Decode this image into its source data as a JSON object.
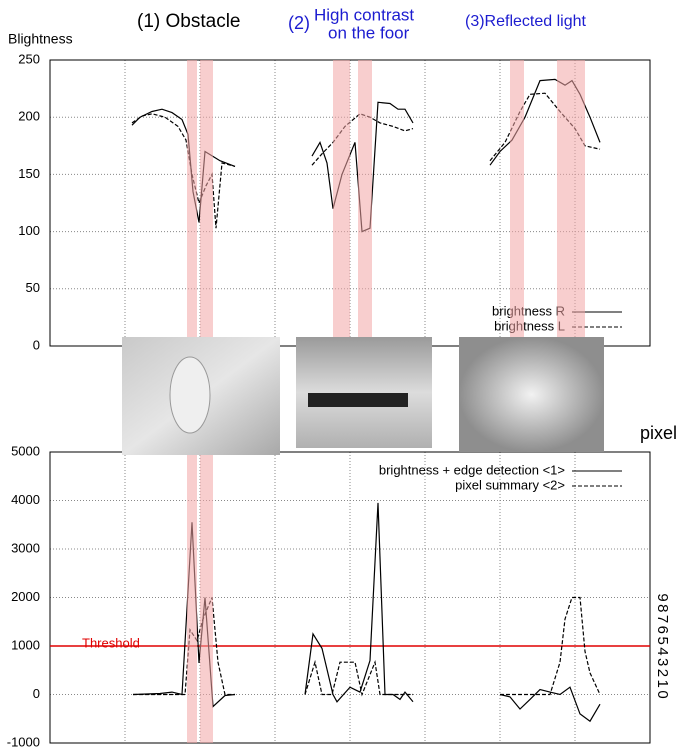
{
  "chart_data": [
    {
      "type": "line",
      "y_label": "Blightness",
      "annotations": [
        {
          "lines": [
            "(1) Obstacle"
          ],
          "color": "#000000"
        },
        {
          "prefix": "(2)",
          "lines": [
            "High contrast",
            "on the foor"
          ],
          "color": "#1c1cd0"
        },
        {
          "lines": [
            "(3)Reflected light"
          ],
          "color": "#1c1cd0"
        }
      ],
      "xlim": [
        0,
        600
      ],
      "xticks": [
        75,
        150,
        225,
        300,
        375,
        450,
        525
      ],
      "ylim": [
        0,
        250
      ],
      "yticks": [
        0,
        50,
        100,
        150,
        200,
        250
      ],
      "grid": true,
      "series": [
        {
          "name": "brightness R",
          "color": "#000000",
          "line_style": "solid",
          "x": [
            82,
            90,
            102,
            112,
            122,
            132,
            138,
            143,
            149,
            155,
            170,
            185,
            null,
            262,
            270,
            277,
            283,
            292,
            305,
            312,
            320,
            328,
            340,
            348,
            355,
            363,
            null,
            440,
            450,
            462,
            475,
            490,
            505,
            515,
            522,
            530,
            540,
            550
          ],
          "values": [
            193,
            200,
            205,
            207,
            204,
            198,
            185,
            135,
            108,
            170,
            162,
            157,
            null,
            166,
            178,
            160,
            120,
            150,
            178,
            100,
            103,
            213,
            212,
            207,
            207,
            195,
            null,
            158,
            170,
            180,
            200,
            232,
            233,
            228,
            232,
            220,
            200,
            178
          ]
        },
        {
          "name": "brightness L",
          "color": "#000000",
          "line_style": "dashed",
          "x": [
            82,
            92,
            102,
            115,
            128,
            136,
            142,
            149,
            156,
            162,
            166,
            172,
            185,
            null,
            262,
            272,
            283,
            295,
            310,
            320,
            330,
            343,
            355,
            363,
            null,
            440,
            455,
            470,
            480,
            495,
            510,
            525,
            535,
            550
          ],
          "values": [
            195,
            201,
            203,
            200,
            192,
            180,
            150,
            125,
            140,
            150,
            103,
            160,
            157,
            null,
            158,
            168,
            178,
            192,
            203,
            200,
            195,
            192,
            188,
            190,
            null,
            162,
            178,
            205,
            220,
            221,
            205,
            190,
            175,
            172
          ]
        }
      ]
    },
    {
      "type": "line",
      "y2_label": "pixel",
      "threshold": {
        "label": "Threshold",
        "value": 1000,
        "color": "#e00000"
      },
      "xlim": [
        0,
        600
      ],
      "xticks": [
        75,
        150,
        225,
        300,
        375,
        450,
        525
      ],
      "ylim": [
        -1000,
        5000
      ],
      "yticks": [
        -1000,
        0,
        1000,
        2000,
        3000,
        4000,
        5000
      ],
      "y2lim": [
        -4.5,
        22.5
      ],
      "y2ticks": [
        0,
        1,
        2,
        3,
        4,
        5,
        6,
        7,
        8,
        9
      ],
      "grid": true,
      "series": [
        {
          "name": "brightness + edge detection <1>",
          "color": "#000000",
          "line_style": "solid",
          "x": [
            83,
            110,
            122,
            132,
            142,
            149,
            155,
            163,
            175,
            185,
            null,
            255,
            263,
            272,
            283,
            287,
            300,
            310,
            320,
            328,
            335,
            343,
            350,
            355,
            363,
            null,
            450,
            460,
            470,
            480,
            490,
            500,
            510,
            520,
            530,
            540,
            550
          ],
          "values": [
            0,
            20,
            50,
            0,
            3550,
            650,
            2000,
            -250,
            -20,
            0,
            null,
            0,
            1250,
            950,
            0,
            -150,
            150,
            50,
            700,
            3950,
            0,
            0,
            -100,
            50,
            -150,
            null,
            0,
            -50,
            -300,
            -100,
            100,
            50,
            0,
            150,
            -400,
            -550,
            -200
          ]
        },
        {
          "name": "pixel summary <2>",
          "color": "#000000",
          "line_style": "dashed",
          "axis": "y2",
          "x": [
            83,
            135,
            140,
            147,
            153,
            162,
            168,
            175,
            185,
            null,
            255,
            265,
            272,
            282,
            290,
            305,
            312,
            325,
            330,
            345,
            355,
            363,
            null,
            450,
            470,
            500,
            510,
            515,
            522,
            530,
            535,
            540,
            550
          ],
          "values": [
            0,
            0,
            6,
            5,
            7,
            9,
            3,
            0,
            0,
            null,
            0,
            3,
            0,
            0,
            3,
            3,
            0,
            3,
            0,
            0,
            0,
            0,
            null,
            0,
            0,
            0,
            3,
            7,
            9,
            9,
            4,
            2,
            0
          ]
        }
      ]
    }
  ]
}
